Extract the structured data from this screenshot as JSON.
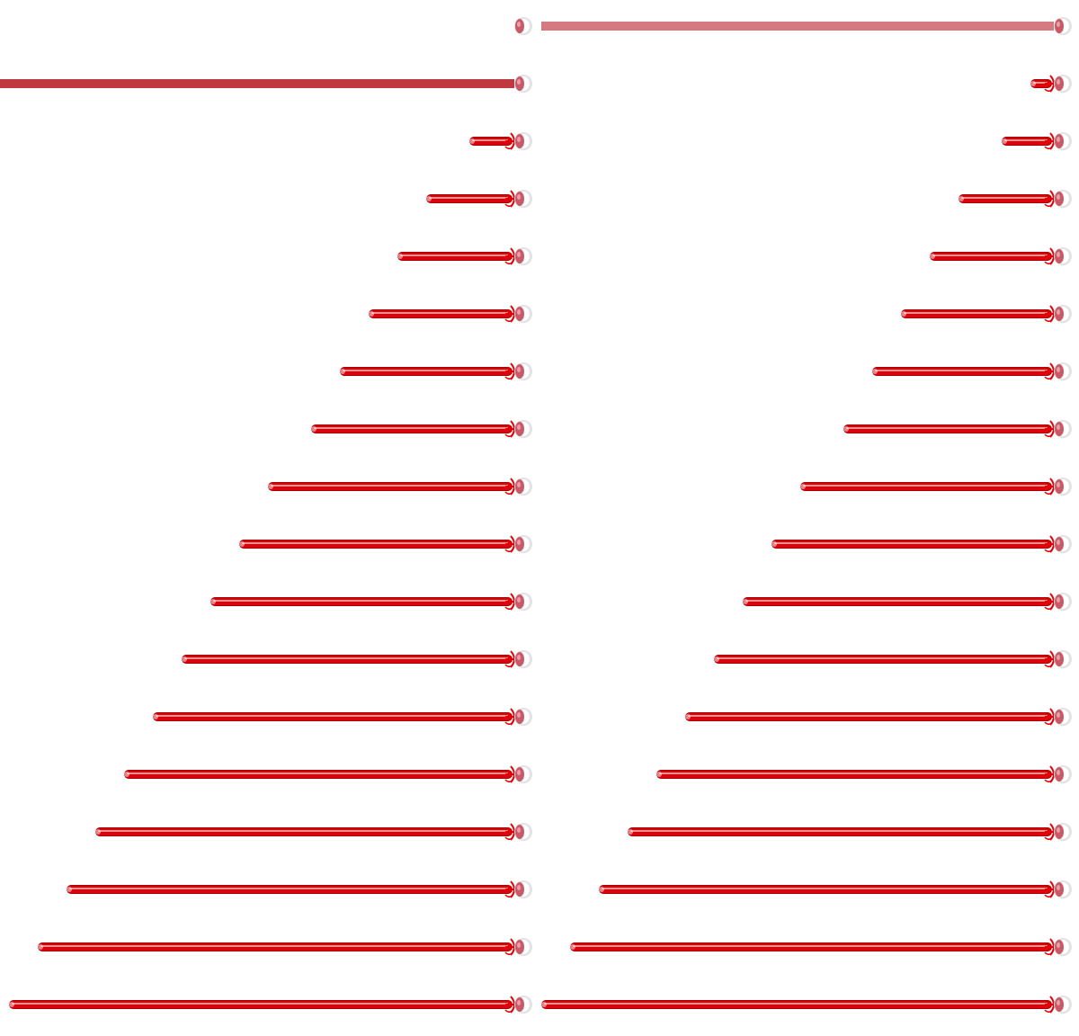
{
  "colors": {
    "background": "#ffffff",
    "shaft": "#e00008",
    "shaft_highlight": "#ff9a9a",
    "shaft_outline": "#a80006",
    "top_bar": "#d47a80",
    "second_bar": "#c0393f",
    "knob_fill": "#c85a68",
    "knob_ring": "#e2e2e2"
  },
  "columns": [
    {
      "name": "left",
      "rows": [
        {
          "kind": "empty",
          "length": 0
        },
        {
          "kind": "flat",
          "length": 36
        },
        {
          "kind": "sword",
          "length": 3
        },
        {
          "kind": "sword",
          "length": 6
        },
        {
          "kind": "sword",
          "length": 8
        },
        {
          "kind": "sword",
          "length": 10
        },
        {
          "kind": "sword",
          "length": 12
        },
        {
          "kind": "sword",
          "length": 14
        },
        {
          "kind": "sword",
          "length": 17
        },
        {
          "kind": "sword",
          "length": 19
        },
        {
          "kind": "sword",
          "length": 21
        },
        {
          "kind": "sword",
          "length": 23
        },
        {
          "kind": "sword",
          "length": 25
        },
        {
          "kind": "sword",
          "length": 27
        },
        {
          "kind": "sword",
          "length": 29
        },
        {
          "kind": "sword",
          "length": 31
        },
        {
          "kind": "sword",
          "length": 33
        },
        {
          "kind": "sword",
          "length": 35
        }
      ]
    },
    {
      "name": "right",
      "rows": [
        {
          "kind": "flat-light",
          "length": 36
        },
        {
          "kind": "sword",
          "length": 1.5
        },
        {
          "kind": "sword",
          "length": 3.5
        },
        {
          "kind": "sword",
          "length": 6.5
        },
        {
          "kind": "sword",
          "length": 8.5
        },
        {
          "kind": "sword",
          "length": 10.5
        },
        {
          "kind": "sword",
          "length": 12.5
        },
        {
          "kind": "sword",
          "length": 14.5
        },
        {
          "kind": "sword",
          "length": 17.5
        },
        {
          "kind": "sword",
          "length": 19.5
        },
        {
          "kind": "sword",
          "length": 21.5
        },
        {
          "kind": "sword",
          "length": 23.5
        },
        {
          "kind": "sword",
          "length": 25.5
        },
        {
          "kind": "sword",
          "length": 27.5
        },
        {
          "kind": "sword",
          "length": 29.5
        },
        {
          "kind": "sword",
          "length": 31.5
        },
        {
          "kind": "sword",
          "length": 33.5
        },
        {
          "kind": "sword",
          "length": 35.5
        }
      ]
    }
  ]
}
